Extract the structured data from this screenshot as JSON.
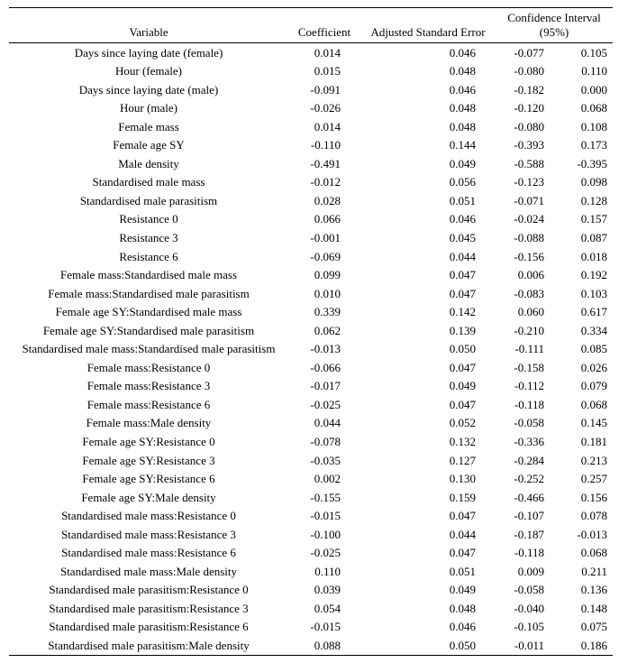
{
  "table": {
    "headers": {
      "variable": "Variable",
      "coefficient": "Coefficient",
      "adj_se": "Adjusted Standard Error",
      "ci": "Confidence Interval (95%)"
    },
    "rows": [
      {
        "variable": "Days since laying date (female)",
        "coef": "0.014",
        "se": "0.046",
        "ci_low": "-0.077",
        "ci_high": "0.105"
      },
      {
        "variable": "Hour (female)",
        "coef": "0.015",
        "se": "0.048",
        "ci_low": "-0.080",
        "ci_high": "0.110"
      },
      {
        "variable": "Days since laying date (male)",
        "coef": "-0.091",
        "se": "0.046",
        "ci_low": "-0.182",
        "ci_high": "0.000"
      },
      {
        "variable": "Hour (male)",
        "coef": "-0.026",
        "se": "0.048",
        "ci_low": "-0.120",
        "ci_high": "0.068"
      },
      {
        "variable": "Female mass",
        "coef": "0.014",
        "se": "0.048",
        "ci_low": "-0.080",
        "ci_high": "0.108"
      },
      {
        "variable": "Female age SY",
        "coef": "-0.110",
        "se": "0.144",
        "ci_low": "-0.393",
        "ci_high": "0.173"
      },
      {
        "variable": "Male density",
        "coef": "-0.491",
        "se": "0.049",
        "ci_low": "-0.588",
        "ci_high": "-0.395"
      },
      {
        "variable": "Standardised male mass",
        "coef": "-0.012",
        "se": "0.056",
        "ci_low": "-0.123",
        "ci_high": "0.098"
      },
      {
        "variable": "Standardised male parasitism",
        "coef": "0.028",
        "se": "0.051",
        "ci_low": "-0.071",
        "ci_high": "0.128"
      },
      {
        "variable": "Resistance 0",
        "coef": "0.066",
        "se": "0.046",
        "ci_low": "-0.024",
        "ci_high": "0.157"
      },
      {
        "variable": "Resistance 3",
        "coef": "-0.001",
        "se": "0.045",
        "ci_low": "-0.088",
        "ci_high": "0.087"
      },
      {
        "variable": "Resistance 6",
        "coef": "-0.069",
        "se": "0.044",
        "ci_low": "-0.156",
        "ci_high": "0.018"
      },
      {
        "variable": "Female mass:Standardised male mass",
        "coef": "0.099",
        "se": "0.047",
        "ci_low": "0.006",
        "ci_high": "0.192"
      },
      {
        "variable": "Female mass:Standardised male parasitism",
        "coef": "0.010",
        "se": "0.047",
        "ci_low": "-0.083",
        "ci_high": "0.103"
      },
      {
        "variable": "Female age SY:Standardised male mass",
        "coef": "0.339",
        "se": "0.142",
        "ci_low": "0.060",
        "ci_high": "0.617"
      },
      {
        "variable": "Female age SY:Standardised male parasitism",
        "coef": "0.062",
        "se": "0.139",
        "ci_low": "-0.210",
        "ci_high": "0.334"
      },
      {
        "variable": "Standardised male mass:Standardised male parasitism",
        "coef": "-0.013",
        "se": "0.050",
        "ci_low": "-0.111",
        "ci_high": "0.085"
      },
      {
        "variable": "Female mass:Resistance 0",
        "coef": "-0.066",
        "se": "0.047",
        "ci_low": "-0.158",
        "ci_high": "0.026"
      },
      {
        "variable": "Female mass:Resistance 3",
        "coef": "-0.017",
        "se": "0.049",
        "ci_low": "-0.112",
        "ci_high": "0.079"
      },
      {
        "variable": "Female mass:Resistance 6",
        "coef": "-0.025",
        "se": "0.047",
        "ci_low": "-0.118",
        "ci_high": "0.068"
      },
      {
        "variable": "Female mass:Male density",
        "coef": "0.044",
        "se": "0.052",
        "ci_low": "-0.058",
        "ci_high": "0.145"
      },
      {
        "variable": "Female age SY:Resistance 0",
        "coef": "-0.078",
        "se": "0.132",
        "ci_low": "-0.336",
        "ci_high": "0.181"
      },
      {
        "variable": "Female age SY:Resistance 3",
        "coef": "-0.035",
        "se": "0.127",
        "ci_low": "-0.284",
        "ci_high": "0.213"
      },
      {
        "variable": "Female age SY:Resistance 6",
        "coef": "0.002",
        "se": "0.130",
        "ci_low": "-0.252",
        "ci_high": "0.257"
      },
      {
        "variable": "Female age SY:Male density",
        "coef": "-0.155",
        "se": "0.159",
        "ci_low": "-0.466",
        "ci_high": "0.156"
      },
      {
        "variable": "Standardised male mass:Resistance 0",
        "coef": "-0.015",
        "se": "0.047",
        "ci_low": "-0.107",
        "ci_high": "0.078"
      },
      {
        "variable": "Standardised male mass:Resistance 3",
        "coef": "-0.100",
        "se": "0.044",
        "ci_low": "-0.187",
        "ci_high": "-0.013"
      },
      {
        "variable": "Standardised male mass:Resistance 6",
        "coef": "-0.025",
        "se": "0.047",
        "ci_low": "-0.118",
        "ci_high": "0.068"
      },
      {
        "variable": "Standardised male mass:Male density",
        "coef": "0.110",
        "se": "0.051",
        "ci_low": "0.009",
        "ci_high": "0.211"
      },
      {
        "variable": "Standardised male parasitism:Resistance 0",
        "coef": "0.039",
        "se": "0.049",
        "ci_low": "-0.058",
        "ci_high": "0.136"
      },
      {
        "variable": "Standardised male parasitism:Resistance 3",
        "coef": "0.054",
        "se": "0.048",
        "ci_low": "-0.040",
        "ci_high": "0.148"
      },
      {
        "variable": "Standardised male parasitism:Resistance 6",
        "coef": "-0.015",
        "se": "0.046",
        "ci_low": "-0.105",
        "ci_high": "0.075"
      },
      {
        "variable": "Standardised male parasitism:Male density",
        "coef": "0.088",
        "se": "0.050",
        "ci_low": "-0.011",
        "ci_high": "0.186"
      }
    ]
  }
}
